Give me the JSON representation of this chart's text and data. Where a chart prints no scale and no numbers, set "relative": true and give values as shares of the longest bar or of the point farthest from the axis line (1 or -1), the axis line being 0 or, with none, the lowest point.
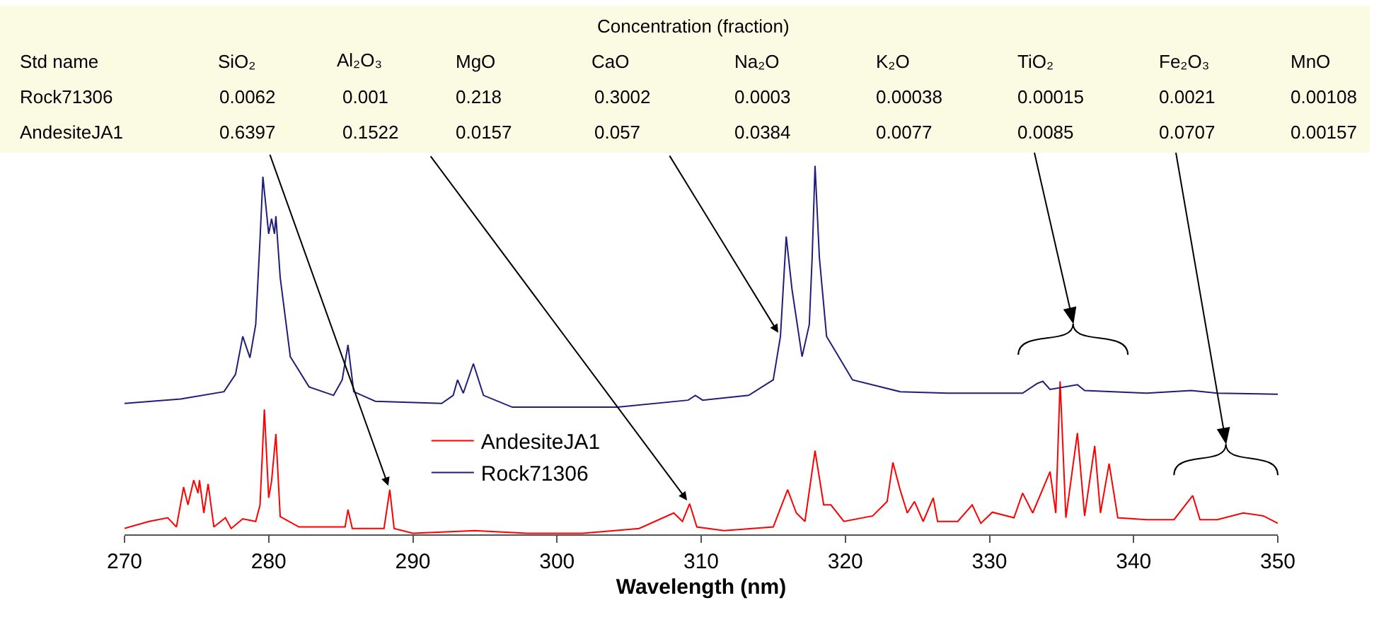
{
  "chart_data": {
    "type": "line",
    "relative": true,
    "xlabel": "Wavelength (nm)",
    "xlim": [
      270,
      350
    ],
    "xticks": [
      270,
      280,
      290,
      300,
      310,
      320,
      330,
      340,
      350
    ],
    "legend": "bottom",
    "series": [
      {
        "name": "AndesiteJA1",
        "color": "#ff0000",
        "x": [
          270,
          271.7,
          273.0,
          273.6,
          274.1,
          274.4,
          274.8,
          275.1,
          275.2,
          275.5,
          275.8,
          276.2,
          277.0,
          277.4,
          278.2,
          279.1,
          279.4,
          279.7,
          280.0,
          280.2,
          280.5,
          280.8,
          282.1,
          285.3,
          285.5,
          285.8,
          288.0,
          288.4,
          288.7,
          290.0,
          294.3,
          297.9,
          301.8,
          305.7,
          308.1,
          308.7,
          309.2,
          309.7,
          311.6,
          315.0,
          316.0,
          316.6,
          317.2,
          317.9,
          318.5,
          319.0,
          319.9,
          321.9,
          322.9,
          323.3,
          323.8,
          324.3,
          324.8,
          325.4,
          326.1,
          326.4,
          327.8,
          328.8,
          329.4,
          330.2,
          331.7,
          332.3,
          333.0,
          334.2,
          334.6,
          334.9,
          335.3,
          336.1,
          336.6,
          337.3,
          337.7,
          338.3,
          338.9,
          340.9,
          342.8,
          344.1,
          344.6,
          345.8,
          347.6,
          349.0,
          350
        ],
        "values": [
          0.016,
          0.035,
          0.045,
          0.02,
          0.128,
          0.08,
          0.147,
          0.112,
          0.147,
          0.058,
          0.137,
          0.02,
          0.045,
          0.016,
          0.042,
          0.035,
          0.08,
          0.339,
          0.099,
          0.144,
          0.272,
          0.048,
          0.02,
          0.02,
          0.067,
          0.016,
          0.016,
          0.121,
          0.016,
          0.003,
          0.01,
          0.003,
          0.003,
          0.016,
          0.058,
          0.035,
          0.083,
          0.02,
          0.01,
          0.02,
          0.121,
          0.058,
          0.035,
          0.227,
          0.08,
          0.08,
          0.035,
          0.05,
          0.089,
          0.195,
          0.121,
          0.058,
          0.089,
          0.035,
          0.099,
          0.035,
          0.035,
          0.08,
          0.03,
          0.06,
          0.045,
          0.112,
          0.058,
          0.17,
          0.058,
          0.415,
          0.045,
          0.275,
          0.05,
          0.24,
          0.058,
          0.192,
          0.045,
          0.04,
          0.04,
          0.105,
          0.04,
          0.04,
          0.058,
          0.05,
          0.03
        ]
      },
      {
        "name": "Rock71306",
        "color": "#1f1f7a",
        "x": [
          270,
          273.9,
          276.9,
          277.7,
          278.2,
          278.7,
          279.1,
          279.4,
          279.6,
          280.0,
          280.2,
          280.4,
          280.5,
          280.8,
          281.5,
          282.8,
          284.5,
          285.1,
          285.5,
          285.9,
          287.4,
          292.0,
          292.8,
          293.1,
          293.5,
          294.2,
          294.9,
          296.9,
          304.2,
          309.1,
          309.6,
          310.1,
          313.3,
          315.0,
          315.5,
          315.9,
          316.3,
          317.0,
          317.5,
          317.7,
          317.9,
          318.2,
          318.7,
          320.5,
          323.8,
          327.1,
          332.3,
          333.3,
          333.7,
          334.2,
          336.1,
          336.6,
          340.9,
          344.0,
          345.8,
          350
        ],
        "values": [
          0.355,
          0.367,
          0.387,
          0.434,
          0.537,
          0.479,
          0.569,
          0.8,
          0.97,
          0.815,
          0.856,
          0.815,
          0.863,
          0.696,
          0.482,
          0.4,
          0.377,
          0.419,
          0.514,
          0.387,
          0.361,
          0.355,
          0.377,
          0.419,
          0.383,
          0.463,
          0.377,
          0.345,
          0.345,
          0.364,
          0.377,
          0.364,
          0.377,
          0.419,
          0.537,
          0.808,
          0.665,
          0.482,
          0.569,
          0.751,
          1,
          0.751,
          0.537,
          0.419,
          0.387,
          0.383,
          0.383,
          0.409,
          0.415,
          0.393,
          0.406,
          0.39,
          0.383,
          0.39,
          0.383,
          0.38
        ]
      }
    ],
    "annotations": [
      "Concentration (fraction)",
      "Std name",
      {
        "text": "SiO₂",
        "x": 288.4,
        "y": 0.121
      },
      {
        "text": "Al₂O₃",
        "x": 309.2,
        "y": 0.083
      },
      "MgO",
      {
        "text": "CaO",
        "x": 315.5,
        "y": 0.537
      },
      "Na₂O",
      "K₂O",
      "TiO₂",
      "Fe₂O₃",
      "MnO",
      "Rock71306",
      "0.0062",
      "0.001",
      "0.218",
      "0.3002",
      "0.0003",
      "0.00038",
      "0.00015",
      "0.0021",
      "0.00108",
      "AndesiteJA1",
      "0.6397",
      "0.1522",
      "0.0157",
      "0.057",
      "0.0384",
      "0.0077",
      "0.0085",
      "0.0707",
      "0.00157"
    ]
  }
}
